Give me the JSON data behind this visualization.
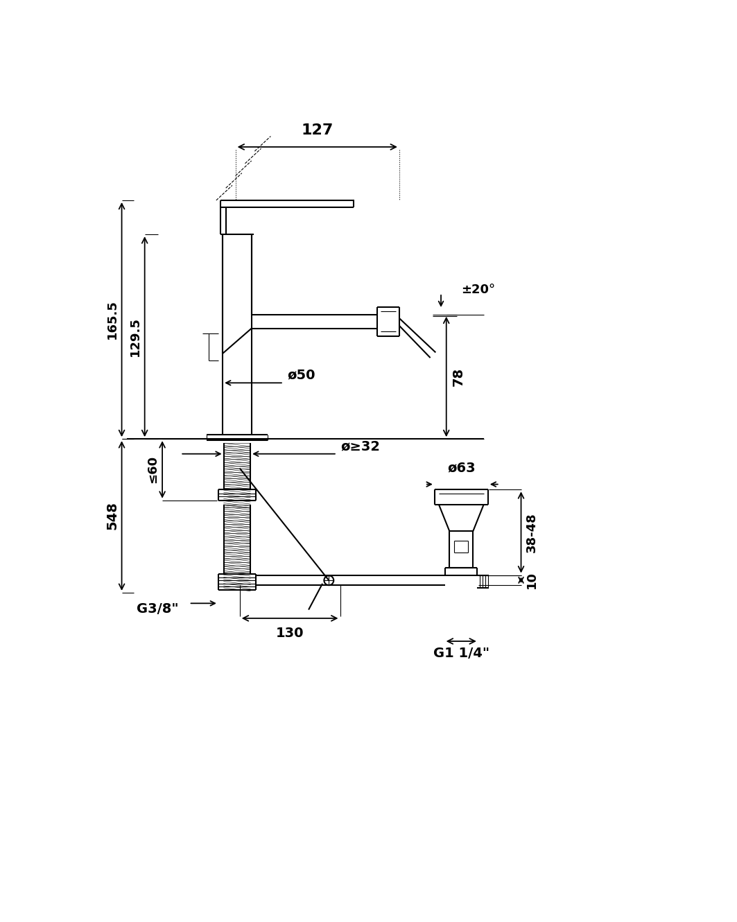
{
  "bg": "#ffffff",
  "lc": "#000000",
  "lw": 1.5,
  "lw_t": 0.8,
  "fig_w": 10.63,
  "fig_h": 13.3,
  "dpi": 100,
  "xlim": [
    0,
    1063
  ],
  "ylim": [
    0,
    1330
  ],
  "labels": {
    "d127": "127",
    "d165": "165.5",
    "d129": "129.5",
    "d60": "≤60",
    "d548": "548",
    "d78": "78",
    "dpm20": "±20°",
    "do50": "ø50",
    "doge32": "ø≥32",
    "do63": "ø63",
    "d3848": "38-48",
    "d10": "10",
    "d130": "130",
    "G38": "G3/8\"",
    "G114": "G1 1/4\""
  }
}
